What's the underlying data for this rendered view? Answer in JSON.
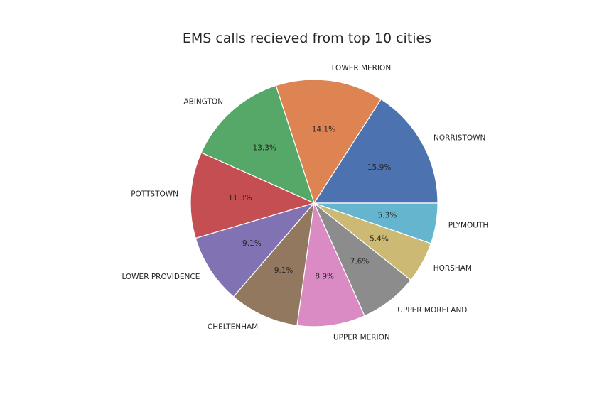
{
  "chart_data": {
    "type": "pie",
    "title": "EMS calls recieved from top 10 cities",
    "slices": [
      {
        "label": "NORRISTOWN",
        "value": 15.9,
        "pct_label": "15.9%",
        "color": "#4c72b0"
      },
      {
        "label": "LOWER MERION",
        "value": 14.1,
        "pct_label": "14.1%",
        "color": "#dd8452"
      },
      {
        "label": "ABINGTON",
        "value": 13.3,
        "pct_label": "13.3%",
        "color": "#55a868"
      },
      {
        "label": "POTTSTOWN",
        "value": 11.3,
        "pct_label": "11.3%",
        "color": "#c44e52"
      },
      {
        "label": "LOWER PROVIDENCE",
        "value": 9.1,
        "pct_label": "9.1%",
        "color": "#8172b3"
      },
      {
        "label": "CHELTENHAM",
        "value": 9.1,
        "pct_label": "9.1%",
        "color": "#937860"
      },
      {
        "label": "UPPER MERION",
        "value": 8.9,
        "pct_label": "8.9%",
        "color": "#da8bc3"
      },
      {
        "label": "UPPER MORELAND",
        "value": 7.6,
        "pct_label": "7.6%",
        "color": "#8c8c8c"
      },
      {
        "label": "HORSHAM",
        "value": 5.4,
        "pct_label": "5.4%",
        "color": "#ccb974"
      },
      {
        "label": "PLYMOUTH",
        "value": 5.3,
        "pct_label": "5.3%",
        "color": "#64b5cd"
      }
    ],
    "start_angle_deg": 0,
    "direction": "counterclockwise"
  }
}
